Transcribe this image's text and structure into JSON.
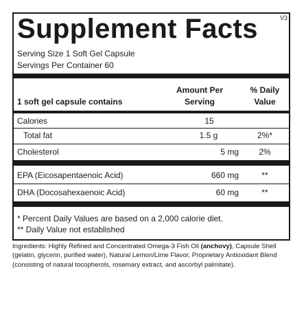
{
  "panel": {
    "version": "V3",
    "title": "Supplement Facts",
    "serving_size": "Serving Size 1 Soft Gel Capsule",
    "servings_per_container": "Servings Per Container 60"
  },
  "table": {
    "header": {
      "contains": "1 soft gel capsule contains",
      "amount_line1": "Amount Per",
      "amount_line2": "Serving",
      "dv_line1": "% Daily",
      "dv_line2": "Value"
    },
    "rows": [
      {
        "name": "Calories",
        "amount": "15",
        "dv": ""
      },
      {
        "name": "Total fat",
        "amount": "1.5 g",
        "dv": "2%*"
      },
      {
        "name": "Cholesterol",
        "amount": "5 mg",
        "dv": "2%"
      },
      {
        "name": "EPA (Eicosapentaenoic Acid)",
        "amount": "660 mg",
        "dv": "**"
      },
      {
        "name": "DHA (Docosahexaenoic Acid)",
        "amount": "60 mg",
        "dv": "**"
      }
    ]
  },
  "footnotes": {
    "daily_value": "* Percent Daily Values are based on a 2,000 calorie diet.",
    "not_established": "** Daily Value not established"
  },
  "ingredients": {
    "before": "Ingredients: Highly Refined and Concentrated Omega-3 Fish Oil ",
    "bold": "(anchovy)",
    "after": ", Capsule Shell (gelatin, glycerin, purified water), Natural Lemon/Lime Flavor, Proprietary Antioxidant Blend (consisting of natural tocopherols, rosemary extract, and ascorbyl palmitate)."
  }
}
